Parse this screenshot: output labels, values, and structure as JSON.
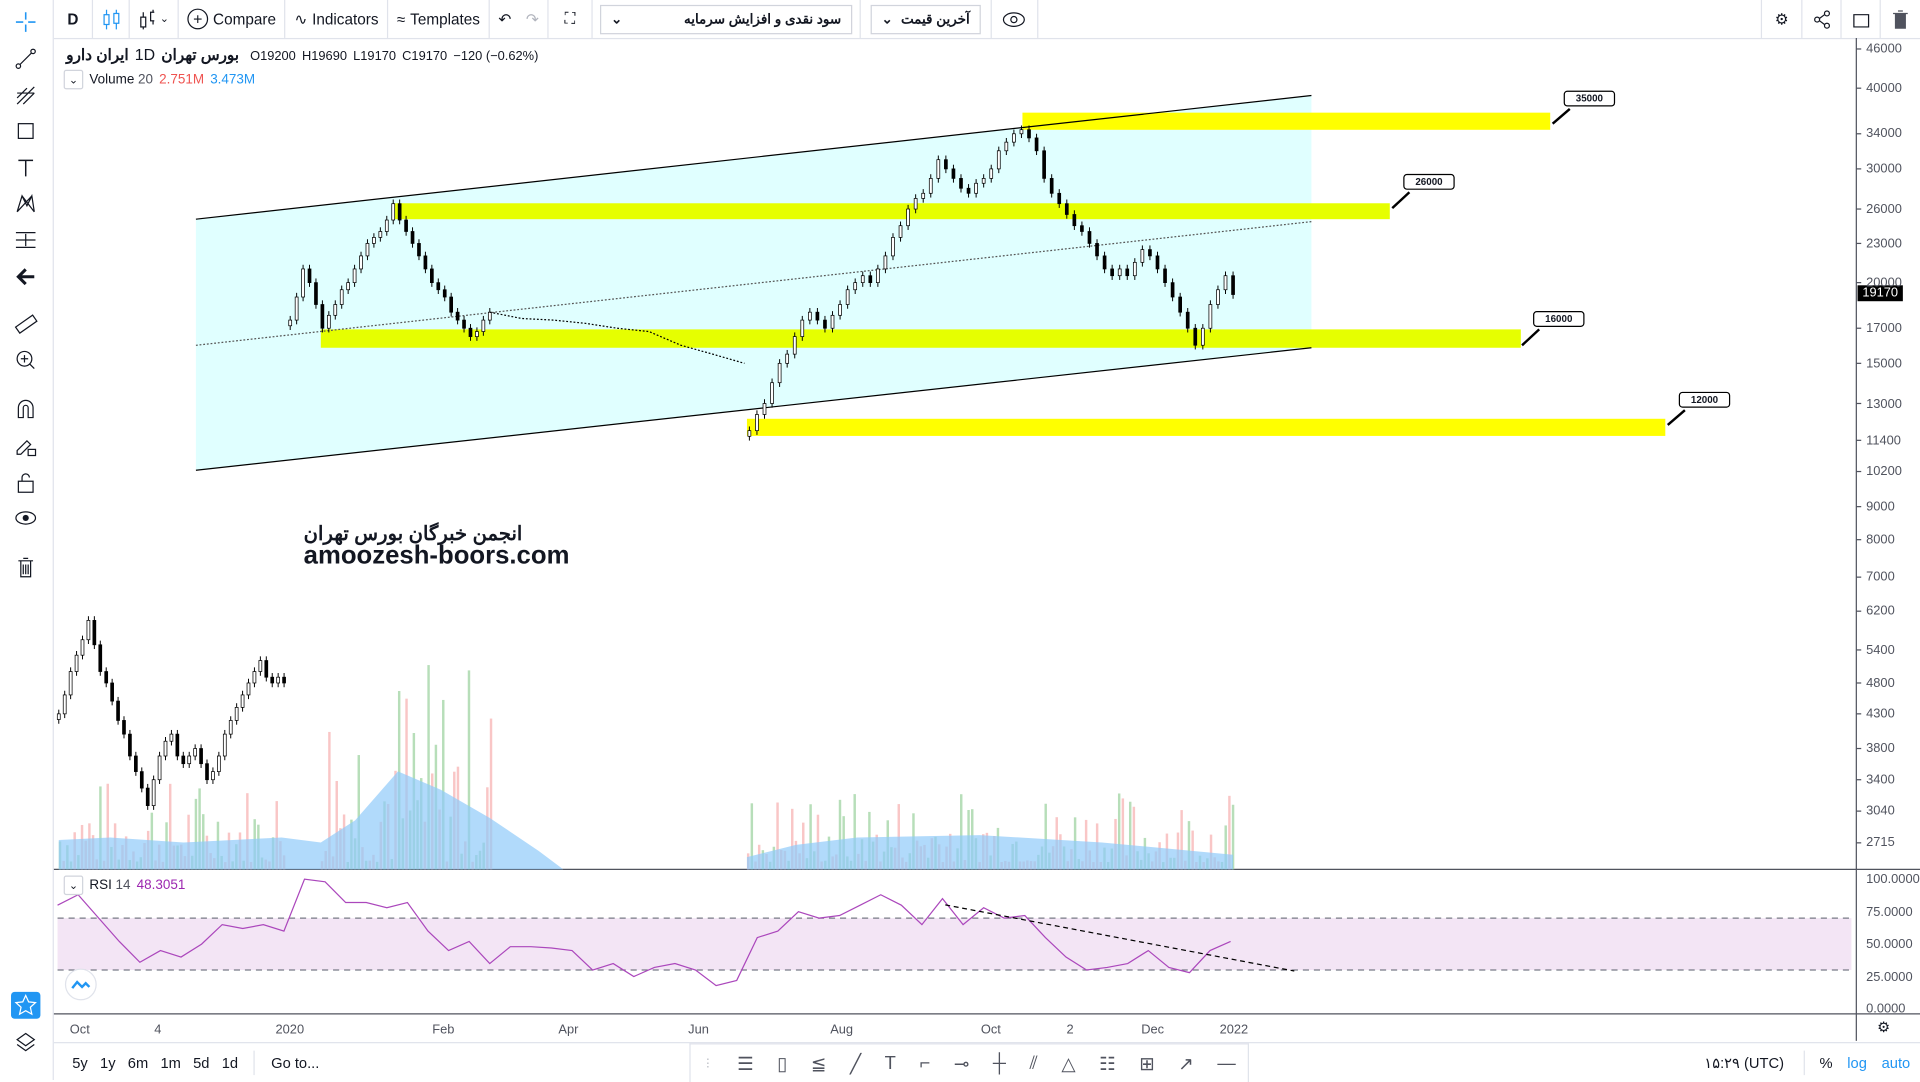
{
  "topbar": {
    "interval": "D",
    "compare": "Compare",
    "indicators": "Indicators",
    "templates": "Templates",
    "dropdown_dividend": "سود نقدی و افزایش سرمایه",
    "dropdown_price": "آخرین قیمت"
  },
  "legend": {
    "symbol": "ایران دارو",
    "interval": "1D",
    "exchange": "بورس تهران",
    "open": "O19200",
    "high": "H19690",
    "low": "L19170",
    "close": "C19170",
    "change": "−120 (−0.62%)"
  },
  "volume_legend": {
    "name": "Volume",
    "length": "20",
    "value": "2.751M",
    "ma": "3.473M",
    "value_color": "#ef5350",
    "ma_color": "#2196f3"
  },
  "rsi_legend": {
    "name": "RSI",
    "length": "14",
    "value": "48.3051",
    "color": "#9c27b0"
  },
  "watermark": {
    "line1": "انجمن خبرگان بورس تهران",
    "line2": "amoozesh-boors.com"
  },
  "last_price": "19170",
  "price_labels": [
    "35000",
    "26000",
    "16000",
    "12000"
  ],
  "bottombar": {
    "ranges": [
      "5y",
      "1y",
      "6m",
      "1m",
      "5d",
      "1d"
    ],
    "goto": "Go to...",
    "time": "۱۵:۲۹ (UTC)",
    "percent": "%",
    "log": "log",
    "auto": "auto"
  },
  "colors": {
    "accent": "#2196f3",
    "channel_fill": "#e0ffff",
    "zone": "#ffff00",
    "zone_lime": "#e6ff00",
    "rsi_band": "#f3e5f5",
    "rsi_line": "#ab47bc",
    "volume_ma": "#90caf9"
  },
  "chart_data": {
    "type": "candlestick",
    "price_scale": "log",
    "y_ticks": [
      46000,
      40000,
      34000,
      30000,
      26000,
      23000,
      20000,
      17000,
      15000,
      13000,
      11400,
      10200,
      9000,
      8000,
      7000,
      6200,
      5400,
      4800,
      4300,
      3800,
      3400,
      3040,
      2715
    ],
    "x_ticks": [
      "Oct",
      "4",
      "2020",
      "Feb",
      "Apr",
      "Jun",
      "Aug",
      "Oct",
      "2",
      "Dec",
      "2022"
    ],
    "rsi_ticks": [
      "100.0000",
      "75.0000",
      "50.0000",
      "25.0000",
      "0.0000"
    ],
    "rsi_levels": [
      70,
      30
    ],
    "segment_a": [
      4300,
      4600,
      5000,
      5300,
      5600,
      6000,
      5500,
      5000,
      4800,
      4500,
      4200,
      4000,
      3700,
      3500,
      3300,
      3100,
      3400,
      3700,
      3900,
      4000,
      3700,
      3600,
      3700,
      3800,
      3600,
      3400,
      3500,
      3700,
      4000,
      4200,
      4400,
      4600,
      4800,
      5000,
      5200,
      4900,
      4800,
      4900,
      4800
    ],
    "segment_b1": [
      17500,
      19000,
      21000,
      20000,
      18500,
      17000,
      17800,
      18500,
      19500,
      20000,
      21000,
      22000,
      23000,
      23500,
      24000,
      25000,
      26500,
      25000,
      24000,
      23000,
      22000,
      21000,
      20000,
      19500,
      19000,
      18000,
      17500,
      17000,
      16500,
      16800,
      17500,
      18000
    ],
    "segment_line": [
      18000,
      17600,
      17500,
      17300,
      17000,
      16800,
      16000,
      15500,
      15000
    ],
    "segment_b2": [
      11800,
      12500,
      13000,
      14000,
      15000,
      15500,
      16500,
      17500,
      18000,
      17500,
      17000,
      17800,
      18500,
      19500,
      20000,
      20500,
      20000,
      21000,
      22000,
      23500,
      24500,
      26000,
      27000,
      27500,
      29000,
      31000,
      30000,
      29000,
      28000,
      27500,
      28500,
      29000,
      30000,
      32000,
      33000,
      34000,
      34500,
      33500,
      32000,
      29000,
      27500,
      26500,
      25500,
      24500,
      24000,
      23000,
      22000,
      21000,
      20500,
      21000,
      20500,
      21500,
      22500,
      22000,
      21000,
      20000,
      19000,
      18000,
      17000,
      16000,
      17000,
      18500,
      19500,
      20500,
      19170
    ],
    "rsi": [
      80,
      88,
      70,
      52,
      36,
      45,
      40,
      50,
      65,
      62,
      65,
      60,
      100,
      98,
      82,
      82,
      78,
      82,
      60,
      45,
      52,
      35,
      48,
      48,
      47,
      45,
      30,
      35,
      25,
      32,
      35,
      30,
      18,
      22,
      55,
      60,
      75,
      70,
      72,
      80,
      88,
      80,
      65,
      85,
      65,
      78,
      70,
      72,
      55,
      40,
      30,
      32,
      35,
      45,
      32,
      28,
      45,
      52
    ]
  }
}
